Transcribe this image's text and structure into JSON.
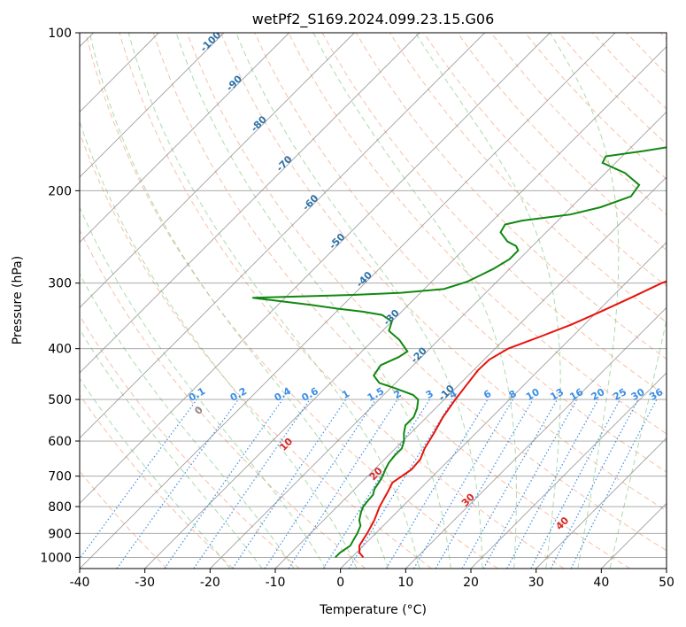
{
  "chart_data": {
    "type": "line",
    "title": "wetPf2_S169.2024.099.23.15.G06",
    "xlabel": "Temperature (°C)",
    "ylabel": "Pressure (hPa)",
    "xlim": [
      -40,
      50
    ],
    "ylim": [
      1050,
      100
    ],
    "y_scale": "log",
    "x_ticks": [
      -40,
      -30,
      -20,
      -10,
      0,
      10,
      20,
      30,
      40,
      50
    ],
    "y_ticks": [
      100,
      200,
      300,
      400,
      500,
      600,
      700,
      800,
      900,
      1000
    ],
    "grid": true,
    "isotherm_labels": [
      "-100",
      "-90",
      "-80",
      "-70",
      "-60",
      "-50",
      "-40",
      "-30",
      "-20",
      "-10"
    ],
    "isotherm_label_values": [
      -100,
      -90,
      -80,
      -70,
      -60,
      -50,
      -40,
      -30,
      -20,
      -10
    ],
    "dry_adiabat_labels": [
      "0",
      "10",
      "20",
      "30",
      "40"
    ],
    "dry_adiabat_label_values": [
      0,
      10,
      20,
      30,
      40
    ],
    "mixing_ratio_labels": [
      "0.1",
      "0.2",
      "0.4",
      "0.6",
      "1",
      "1.5",
      "2",
      "3",
      "4",
      "6",
      "8",
      "10",
      "13",
      "16",
      "20",
      "25",
      "30",
      "36"
    ],
    "mixing_ratio_label_values": [
      0.1,
      0.2,
      0.4,
      0.6,
      1,
      1.5,
      2,
      3,
      4,
      6,
      8,
      10,
      13,
      16,
      20,
      25,
      30,
      36
    ],
    "colors": {
      "temperature": "#e8120c",
      "dewpoint": "#118811",
      "isotherm": "#888888",
      "dry_adiabat": "#f4a582",
      "moist_adiabat": "#96d296",
      "mixing_ratio": "#3a8ee6",
      "isotherm_label": "#2f72a8",
      "adiabat_label": "#d62728",
      "mixing_label": "#3a8ee6",
      "zero_label": "#888888"
    },
    "series": [
      {
        "name": "Temperature",
        "points": [
          [
            1.8,
            1000
          ],
          [
            0.5,
            980
          ],
          [
            -0.6,
            950
          ],
          [
            -1.3,
            900
          ],
          [
            -2.2,
            850
          ],
          [
            -3.5,
            800
          ],
          [
            -4.5,
            750
          ],
          [
            -5.2,
            720
          ],
          [
            -4.3,
            680
          ],
          [
            -4.5,
            650
          ],
          [
            -5.5,
            620
          ],
          [
            -6.4,
            580
          ],
          [
            -7.5,
            540
          ],
          [
            -8.3,
            500
          ],
          [
            -8.8,
            470
          ],
          [
            -9.3,
            440
          ],
          [
            -9.2,
            420
          ],
          [
            -8.0,
            400
          ],
          [
            -5.0,
            380
          ],
          [
            -2.0,
            360
          ],
          [
            0.5,
            340
          ],
          [
            3.0,
            320
          ],
          [
            5.5,
            300
          ],
          [
            7.5,
            290
          ],
          [
            9.5,
            280
          ],
          [
            11.5,
            270
          ],
          [
            14.5,
            260
          ],
          [
            16.5,
            250
          ],
          [
            17.5,
            235
          ],
          [
            18.5,
            220
          ],
          [
            19.5,
            205
          ],
          [
            21.5,
            195
          ],
          [
            23.5,
            185
          ],
          [
            24.5,
            175
          ],
          [
            25.5,
            165
          ],
          [
            26.5,
            155
          ],
          [
            27.5,
            145
          ],
          [
            27.5,
            135
          ],
          [
            28.5,
            125
          ],
          [
            30.5,
            118
          ],
          [
            33.5,
            110
          ],
          [
            36.5,
            104
          ],
          [
            38.5,
            100
          ]
        ]
      },
      {
        "name": "Dewpoint",
        "points": [
          [
            -2.5,
            1000
          ],
          [
            -2.5,
            980
          ],
          [
            -2.0,
            950
          ],
          [
            -2.5,
            920
          ],
          [
            -2.8,
            900
          ],
          [
            -3.5,
            870
          ],
          [
            -4.5,
            850
          ],
          [
            -5.5,
            820
          ],
          [
            -6.0,
            800
          ],
          [
            -6.2,
            780
          ],
          [
            -6.3,
            760
          ],
          [
            -7.0,
            740
          ],
          [
            -7.3,
            720
          ],
          [
            -7.7,
            700
          ],
          [
            -8.3,
            680
          ],
          [
            -8.8,
            660
          ],
          [
            -9.0,
            640
          ],
          [
            -9.0,
            620
          ],
          [
            -9.8,
            600
          ],
          [
            -11.0,
            580
          ],
          [
            -12.0,
            560
          ],
          [
            -12.0,
            540
          ],
          [
            -12.8,
            520
          ],
          [
            -14.0,
            500
          ],
          [
            -15.5,
            490
          ],
          [
            -19.5,
            475
          ],
          [
            -22.5,
            465
          ],
          [
            -24.5,
            450
          ],
          [
            -25.0,
            430
          ],
          [
            -23.5,
            415
          ],
          [
            -23.0,
            405
          ],
          [
            -26.0,
            385
          ],
          [
            -29.0,
            370
          ],
          [
            -30.0,
            355
          ],
          [
            -32.5,
            345
          ],
          [
            -36.0,
            340
          ],
          [
            -40.0,
            336
          ],
          [
            -45.0,
            330
          ],
          [
            -55.0,
            320
          ],
          [
            -40.0,
            316
          ],
          [
            -33.0,
            313
          ],
          [
            -27.0,
            308
          ],
          [
            -24.5,
            298
          ],
          [
            -23.5,
            290
          ],
          [
            -22.5,
            282
          ],
          [
            -21.5,
            270
          ],
          [
            -21.5,
            260
          ],
          [
            -22.5,
            255
          ],
          [
            -24.5,
            250
          ],
          [
            -27.0,
            240
          ],
          [
            -27.5,
            232
          ],
          [
            -25.5,
            228
          ],
          [
            -19.0,
            222
          ],
          [
            -15.5,
            215
          ],
          [
            -12.5,
            205
          ],
          [
            -13.0,
            195
          ],
          [
            -17.0,
            185
          ],
          [
            -22.0,
            177
          ],
          [
            -22.5,
            172
          ],
          [
            -17.5,
            168
          ],
          [
            -12.0,
            163
          ],
          [
            -10.5,
            158
          ],
          [
            -7.5,
            152
          ],
          [
            -5.0,
            143
          ],
          [
            -4.0,
            133
          ],
          [
            -2.0,
            125
          ],
          [
            0.0,
            120
          ],
          [
            2.5,
            114
          ],
          [
            6.0,
            106
          ],
          [
            8.5,
            100
          ]
        ]
      }
    ]
  }
}
